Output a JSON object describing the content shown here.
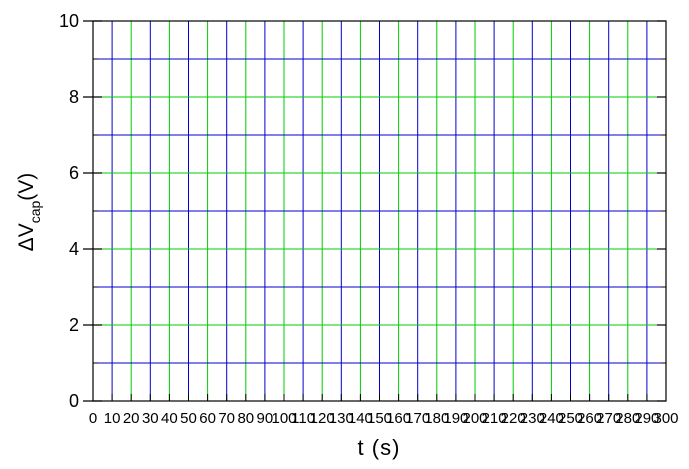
{
  "chart_data": {
    "type": "line",
    "xlabel": "t (s)",
    "ylabel": {
      "prefix": "ΔV",
      "subscript": "cap",
      "suffix": "(V)"
    },
    "xlim": [
      0,
      300
    ],
    "ylim": [
      0,
      10
    ],
    "x_ticks": [
      "0",
      "10",
      "20",
      "30",
      "40",
      "50",
      "60",
      "70",
      "80",
      "90",
      "100",
      "110",
      "120",
      "130",
      "140",
      "150",
      "160",
      "170",
      "180",
      "190",
      "200",
      "210",
      "220",
      "230",
      "240",
      "250",
      "260",
      "270",
      "280",
      "290",
      "300"
    ],
    "y_ticks": [
      "0",
      "2",
      "4",
      "6",
      "8",
      "10"
    ],
    "x_minor_step": 10,
    "y_minor_step": 1,
    "grid": true,
    "series": []
  },
  "colors": {
    "grid_major_x": "#00cc00",
    "grid_minor_x": "#0000cc",
    "grid_horizontal_major": "#00cc00",
    "grid_horizontal_minor": "#0000cc",
    "axis": "#000000"
  }
}
